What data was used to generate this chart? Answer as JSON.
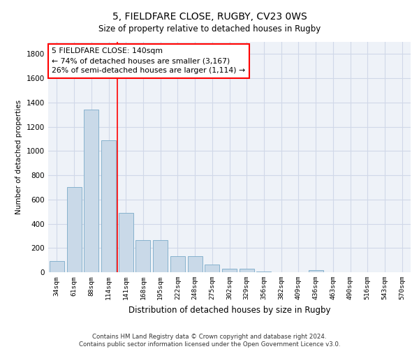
{
  "title1": "5, FIELDFARE CLOSE, RUGBY, CV23 0WS",
  "title2": "Size of property relative to detached houses in Rugby",
  "xlabel": "Distribution of detached houses by size in Rugby",
  "ylabel": "Number of detached properties",
  "categories": [
    "34sqm",
    "61sqm",
    "88sqm",
    "114sqm",
    "141sqm",
    "168sqm",
    "195sqm",
    "222sqm",
    "248sqm",
    "275sqm",
    "302sqm",
    "329sqm",
    "356sqm",
    "382sqm",
    "409sqm",
    "436sqm",
    "463sqm",
    "490sqm",
    "516sqm",
    "543sqm",
    "570sqm"
  ],
  "values": [
    95,
    700,
    1340,
    1090,
    490,
    265,
    265,
    130,
    130,
    65,
    30,
    30,
    5,
    0,
    0,
    20,
    0,
    0,
    0,
    0,
    0
  ],
  "bar_color": "#c9d9e8",
  "bar_edge_color": "#7aaac8",
  "vline_color": "red",
  "annotation_text": "5 FIELDFARE CLOSE: 140sqm\n← 74% of detached houses are smaller (3,167)\n26% of semi-detached houses are larger (1,114) →",
  "ylim": [
    0,
    1900
  ],
  "yticks": [
    0,
    200,
    400,
    600,
    800,
    1000,
    1200,
    1400,
    1600,
    1800
  ],
  "grid_color": "#d0d8e8",
  "footer": "Contains HM Land Registry data © Crown copyright and database right 2024.\nContains public sector information licensed under the Open Government Licence v3.0.",
  "bg_color": "#eef2f8"
}
